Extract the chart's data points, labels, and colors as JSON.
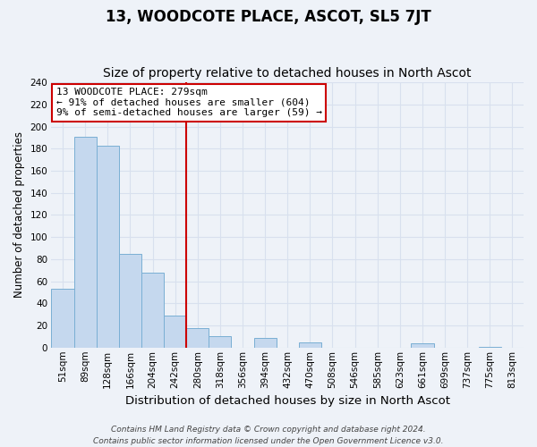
{
  "title": "13, WOODCOTE PLACE, ASCOT, SL5 7JT",
  "subtitle": "Size of property relative to detached houses in North Ascot",
  "xlabel": "Distribution of detached houses by size in North Ascot",
  "ylabel": "Number of detached properties",
  "bar_labels": [
    "51sqm",
    "89sqm",
    "128sqm",
    "166sqm",
    "204sqm",
    "242sqm",
    "280sqm",
    "318sqm",
    "356sqm",
    "394sqm",
    "432sqm",
    "470sqm",
    "508sqm",
    "546sqm",
    "585sqm",
    "623sqm",
    "661sqm",
    "699sqm",
    "737sqm",
    "775sqm",
    "813sqm"
  ],
  "bar_values": [
    53,
    191,
    183,
    85,
    68,
    29,
    18,
    10,
    0,
    9,
    0,
    5,
    0,
    0,
    0,
    0,
    4,
    0,
    0,
    1,
    0
  ],
  "bar_color": "#c5d8ee",
  "bar_edge_color": "#7aafd4",
  "vline_index": 6,
  "vline_color": "#cc0000",
  "annotation_line1": "13 WOODCOTE PLACE: 279sqm",
  "annotation_line2": "← 91% of detached houses are smaller (604)",
  "annotation_line3": "9% of semi-detached houses are larger (59) →",
  "annotation_box_color": "white",
  "annotation_box_edge_color": "#cc0000",
  "ylim": [
    0,
    240
  ],
  "yticks": [
    0,
    20,
    40,
    60,
    80,
    100,
    120,
    140,
    160,
    180,
    200,
    220,
    240
  ],
  "footer_line1": "Contains HM Land Registry data © Crown copyright and database right 2024.",
  "footer_line2": "Contains public sector information licensed under the Open Government Licence v3.0.",
  "title_fontsize": 12,
  "subtitle_fontsize": 10,
  "xlabel_fontsize": 9.5,
  "ylabel_fontsize": 8.5,
  "tick_fontsize": 7.5,
  "annotation_fontsize": 8,
  "footer_fontsize": 6.5,
  "background_color": "#eef2f8",
  "grid_color": "#d8e0ee",
  "plot_bg_color": "#eef2f8"
}
